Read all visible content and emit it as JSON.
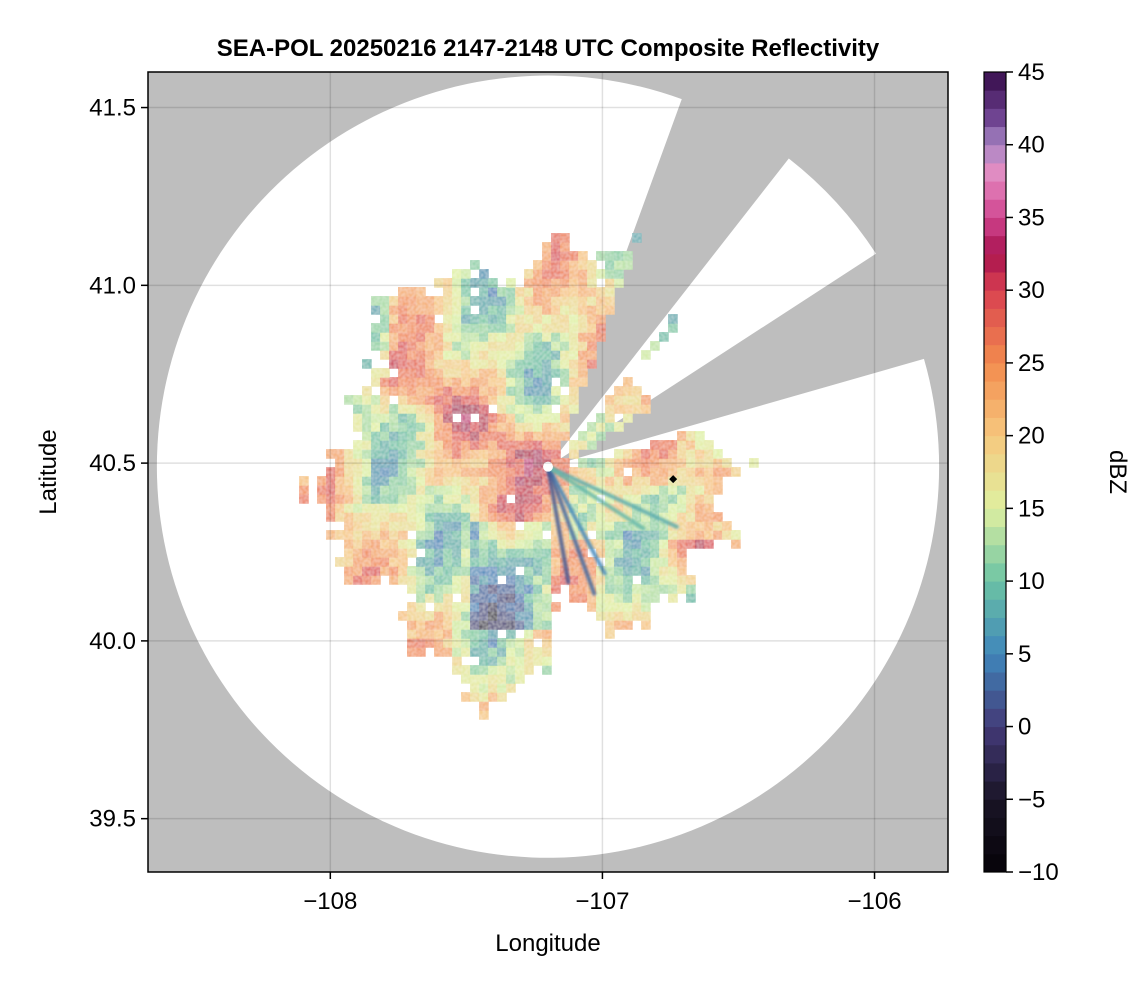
{
  "chart_data": {
    "type": "heatmap",
    "title": "SEA-POL 20250216 2147-2148 UTC Composite Reflectivity",
    "xlabel": "Longitude",
    "ylabel": "Latitude",
    "xlim": [
      -108.67,
      -105.73
    ],
    "ylim": [
      39.35,
      41.6
    ],
    "xticks": [
      -108,
      -107,
      -106
    ],
    "xtick_labels": [
      "−108",
      "−107",
      "−106"
    ],
    "yticks": [
      39.5,
      40.0,
      40.5,
      41.0,
      41.5
    ],
    "ytick_labels": [
      "39.5",
      "40.0",
      "40.5",
      "41.0",
      "41.5"
    ],
    "grid": true,
    "background_color": "#bebebe",
    "coverage_color": "#ffffff",
    "radar": {
      "center_lon": -107.2,
      "center_lat": 40.49,
      "coverage_radius_lat_deg": 1.1,
      "blocked_sectors_deg_from_north": [
        [
          20,
          38
        ],
        [
          57,
          74
        ]
      ]
    },
    "marker": {
      "lon": -106.74,
      "lat": 40.455,
      "color": "#000000"
    },
    "colorbar": {
      "label": "dBZ",
      "min": -10,
      "max": 45,
      "ticks": [
        -10,
        -5,
        0,
        5,
        10,
        15,
        20,
        25,
        30,
        35,
        40,
        45
      ],
      "tick_labels": [
        "−10",
        "−5",
        "0",
        "5",
        "10",
        "15",
        "20",
        "25",
        "30",
        "35",
        "40",
        "45"
      ],
      "levels": 44,
      "colormap": [
        [
          -10,
          "#050308"
        ],
        [
          -5,
          "#1a1426"
        ],
        [
          0,
          "#433a78"
        ],
        [
          5,
          "#3f86bb"
        ],
        [
          10,
          "#6cc3a4"
        ],
        [
          15,
          "#dff0a0"
        ],
        [
          20,
          "#f6c87e"
        ],
        [
          25,
          "#f28b4e"
        ],
        [
          30,
          "#d94150"
        ],
        [
          32.5,
          "#a8124f"
        ],
        [
          35,
          "#d0458f"
        ],
        [
          38,
          "#e48cc2"
        ],
        [
          40,
          "#a888c6"
        ],
        [
          42,
          "#6b3f8d"
        ],
        [
          45,
          "#360c4a"
        ]
      ]
    }
  }
}
